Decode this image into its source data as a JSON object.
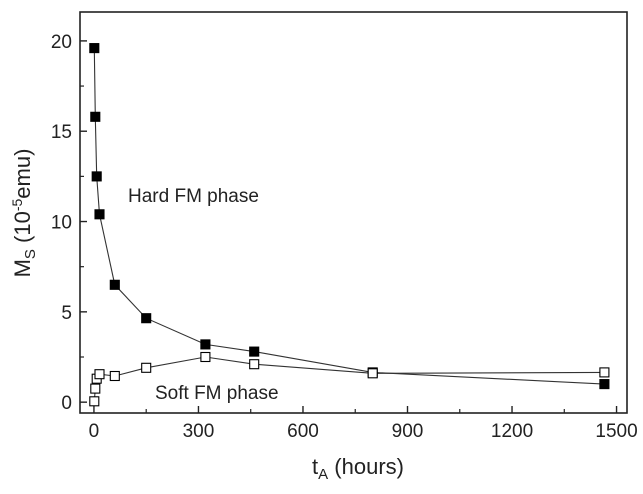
{
  "chart_data": {
    "type": "scatter",
    "xlabel": "t",
    "xlabel_sub": "A",
    "xlabel_unit": " (hours)",
    "ylabel_main": "M",
    "ylabel_sub": "S",
    "ylabel_unit_open": " (10",
    "ylabel_unit_sup": "-5",
    "ylabel_unit_close": "emu)",
    "xlim": [
      -40,
      1530
    ],
    "ylim": [
      -0.6,
      21.6
    ],
    "xticks": [
      0,
      300,
      600,
      900,
      1200,
      1500
    ],
    "yticks": [
      0,
      5,
      10,
      15,
      20
    ],
    "grid": false,
    "series": [
      {
        "name": "Hard FM phase",
        "marker": "filled-square",
        "color": "#000000",
        "x": [
          1,
          4,
          8,
          16,
          60,
          150,
          320,
          460,
          800,
          1465
        ],
        "y": [
          19.6,
          15.8,
          12.5,
          10.4,
          6.5,
          4.65,
          3.2,
          2.8,
          1.65,
          1.0
        ]
      },
      {
        "name": "Soft FM phase",
        "marker": "open-square",
        "color": "#000000",
        "x": [
          1,
          4,
          8,
          16,
          60,
          150,
          320,
          460,
          800,
          1465
        ],
        "y": [
          0.05,
          0.75,
          1.3,
          1.55,
          1.45,
          1.9,
          2.5,
          2.1,
          1.6,
          1.65
        ]
      }
    ],
    "annotations": [
      {
        "text": "Hard FM phase"
      },
      {
        "text": "Soft FM phase"
      }
    ]
  }
}
